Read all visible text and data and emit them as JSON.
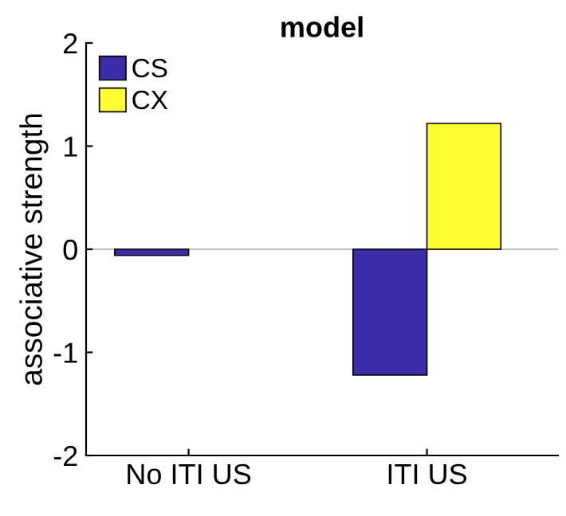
{
  "chart_data": {
    "type": "bar",
    "title": "model",
    "ylabel": "associative strength",
    "categories": [
      "No ITI US",
      "ITI US"
    ],
    "series": [
      {
        "name": "CS",
        "color": "#3b2ca8",
        "values": [
          -0.06,
          -1.22
        ]
      },
      {
        "name": "CX",
        "color": "#ffff33",
        "values": [
          null,
          1.22
        ]
      }
    ],
    "ylim": [
      -2,
      2
    ],
    "yticks": [
      -2,
      -1,
      0,
      1,
      2
    ],
    "ref_lines": [
      {
        "axis": "y",
        "value": 0,
        "color": "#c0c0c0"
      }
    ],
    "legend": "top left",
    "grid": false
  }
}
